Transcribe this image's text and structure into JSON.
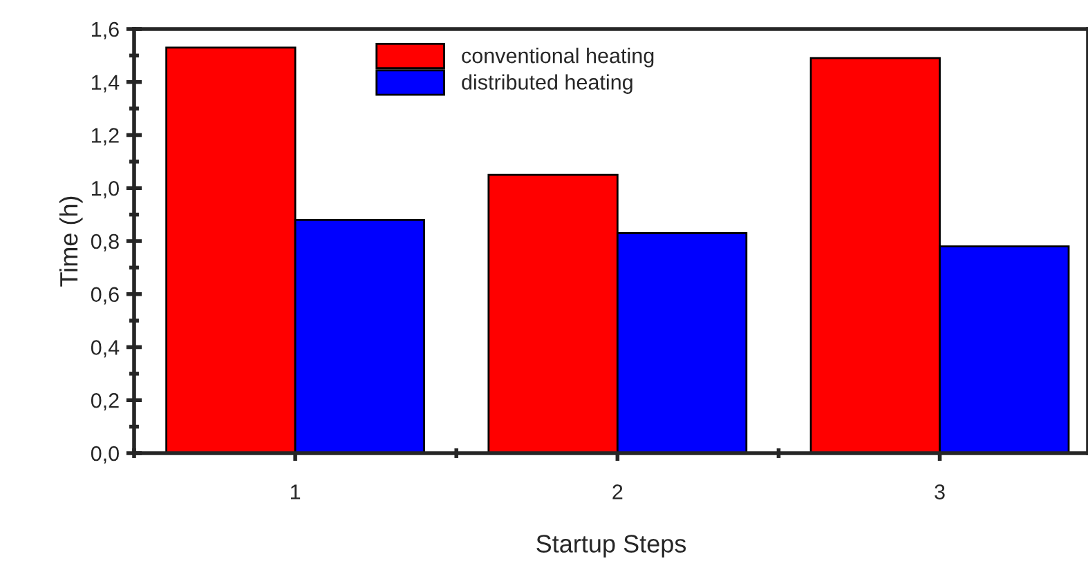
{
  "chart_data": {
    "type": "bar",
    "xlabel": "Startup Steps",
    "ylabel": "Time (h)",
    "x": [
      1,
      2,
      3
    ],
    "series": [
      {
        "name": "conventional heating",
        "color": "#ff0000",
        "values": [
          1.53,
          1.05,
          1.49
        ]
      },
      {
        "name": "distributed heating",
        "color": "#0000ff",
        "values": [
          0.88,
          0.83,
          0.78
        ]
      }
    ],
    "xlim": [
      0.5,
      3.46
    ],
    "xticks": [
      1,
      2,
      3
    ],
    "ylim": [
      0,
      1.6
    ],
    "yticks": [
      {
        "value": 0,
        "label": "0,0"
      },
      {
        "value": 0.2,
        "label": "0,2"
      },
      {
        "value": 0.4,
        "label": "0,4"
      },
      {
        "value": 0.6,
        "label": "0,6"
      },
      {
        "value": 0.8,
        "label": "0,8"
      },
      {
        "value": 1.0,
        "label": "1,0"
      },
      {
        "value": 1.2,
        "label": "1,2"
      },
      {
        "value": 1.4,
        "label": "1,4"
      },
      {
        "value": 1.6,
        "label": "1,6"
      }
    ],
    "legend": "top",
    "grid": false
  }
}
